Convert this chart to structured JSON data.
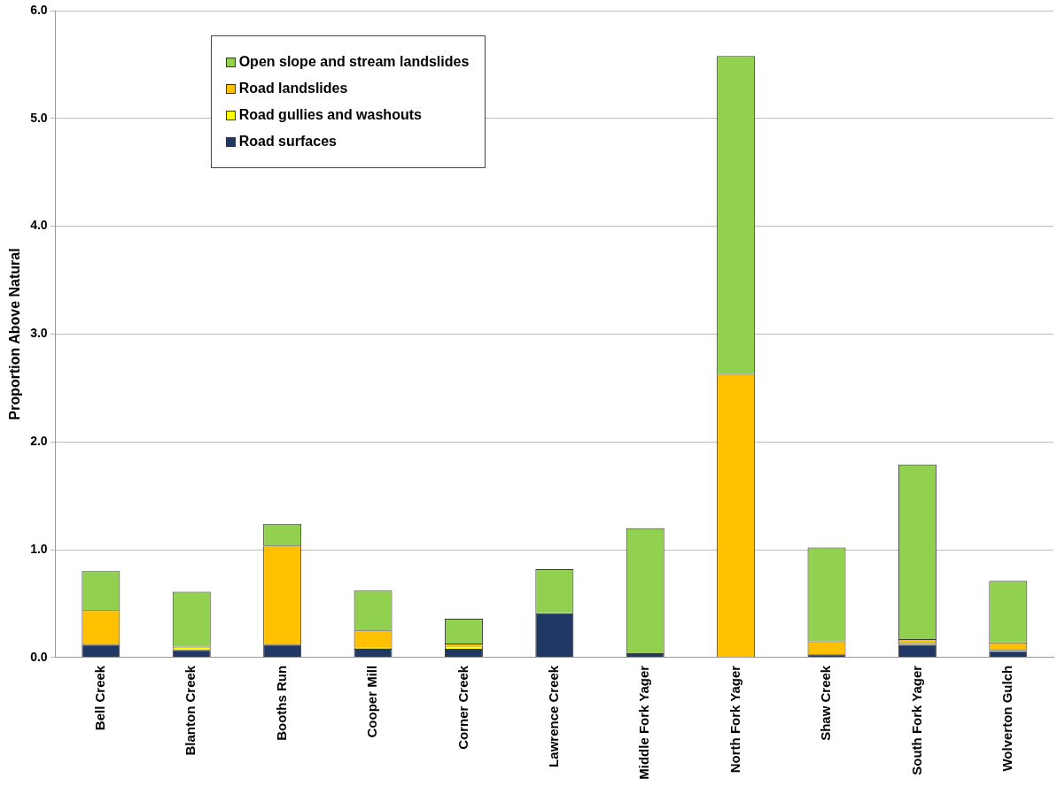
{
  "chart_data": {
    "type": "bar",
    "stacked": true,
    "ylabel": "Proportion Above Natural",
    "categories": [
      "Bell Creek",
      "Blanton Creek",
      "Booths Run",
      "Cooper Mill",
      "Corner Creek",
      "Lawrence Creek",
      "Middle Fork Yager",
      "North Fork Yager",
      "Shaw Creek",
      "South Fork Yager",
      "Wolverton Gulch"
    ],
    "series": [
      {
        "name": "Road surfaces",
        "color": "#1f3864",
        "values": [
          0.12,
          0.07,
          0.12,
          0.08,
          0.08,
          0.41,
          0.04,
          0,
          0.03,
          0.12,
          0.06
        ]
      },
      {
        "name": "Road gullies and washouts",
        "color": "#ffff00",
        "values": [
          0.01,
          0.03,
          0,
          0.01,
          0.03,
          0,
          0,
          0,
          0,
          0.02,
          0.01
        ]
      },
      {
        "name": "Road landslides",
        "color": "#ffc000",
        "values": [
          0.31,
          0,
          0.92,
          0.16,
          0.02,
          0,
          0,
          2.63,
          0.12,
          0.03,
          0.07
        ]
      },
      {
        "name": "Open slope and stream landslides",
        "color": "#92d050",
        "values": [
          0.36,
          0.51,
          0.2,
          0.37,
          0.23,
          0.41,
          1.16,
          2.95,
          0.87,
          1.62,
          0.57
        ]
      }
    ],
    "ylim": [
      0,
      6
    ],
    "yticks": [
      {
        "value": 0,
        "label": "0.0"
      },
      {
        "value": 1,
        "label": "1.0"
      },
      {
        "value": 2,
        "label": "2.0"
      },
      {
        "value": 3,
        "label": "3.0"
      },
      {
        "value": 4,
        "label": "4.0"
      },
      {
        "value": 5,
        "label": "5.0"
      },
      {
        "value": 6,
        "label": "6.0"
      }
    ],
    "grid": "y",
    "legend": "top left"
  }
}
